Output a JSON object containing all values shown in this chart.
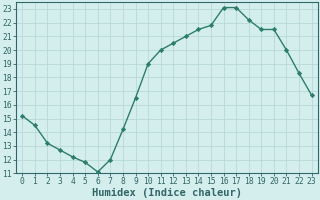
{
  "x": [
    0,
    1,
    2,
    3,
    4,
    5,
    6,
    7,
    8,
    9,
    10,
    11,
    12,
    13,
    14,
    15,
    16,
    17,
    18,
    19,
    20,
    21,
    22,
    23
  ],
  "y": [
    15.2,
    14.5,
    13.2,
    12.7,
    12.2,
    11.8,
    11.1,
    12.0,
    14.2,
    16.5,
    19.0,
    20.0,
    20.5,
    21.0,
    21.5,
    21.8,
    23.1,
    23.1,
    22.2,
    21.5,
    21.5,
    20.0,
    18.3,
    16.7
  ],
  "line_color": "#2d7d6b",
  "marker": "D",
  "marker_size": 2.2,
  "bg_color": "#d4eeee",
  "grid_color": "#b8d8d8",
  "xlabel": "Humidex (Indice chaleur)",
  "xlim": [
    -0.5,
    23.5
  ],
  "ylim": [
    11,
    23.5
  ],
  "yticks": [
    11,
    12,
    13,
    14,
    15,
    16,
    17,
    18,
    19,
    20,
    21,
    22,
    23
  ],
  "xticks": [
    0,
    1,
    2,
    3,
    4,
    5,
    6,
    7,
    8,
    9,
    10,
    11,
    12,
    13,
    14,
    15,
    16,
    17,
    18,
    19,
    20,
    21,
    22,
    23
  ],
  "xlabel_fontsize": 7.5,
  "tick_fontsize": 5.8,
  "line_width": 1.0,
  "axes_color": "#336666",
  "tick_color": "#336666",
  "spine_color": "#336666"
}
